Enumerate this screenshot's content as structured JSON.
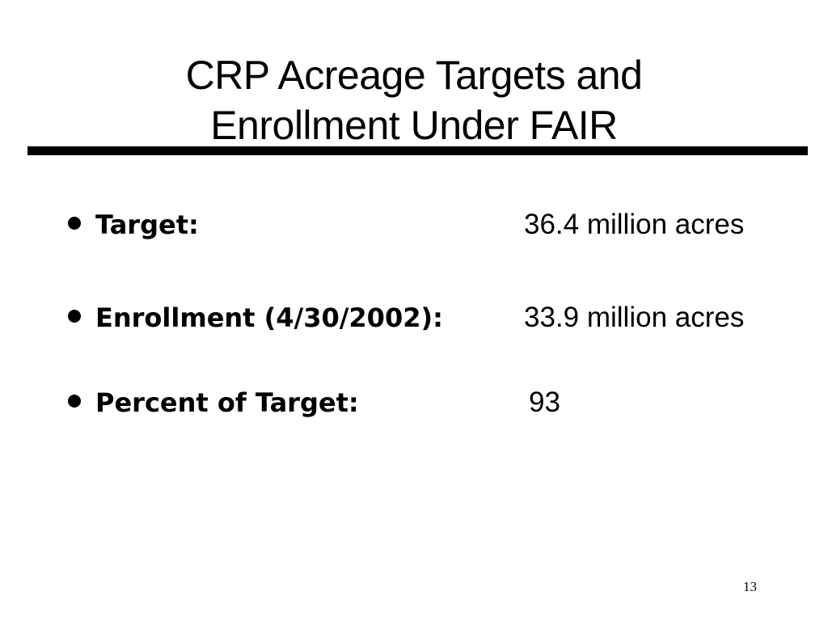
{
  "slide": {
    "title_line_1": "CRP Acreage Targets and",
    "title_line_2": "Enrollment Under FAIR",
    "bullets": [
      {
        "label": "Target:",
        "value": "36.4 million acres"
      },
      {
        "label": "Enrollment (4/30/2002):",
        "value": "33.9 million acres"
      },
      {
        "label": "Percent of Target:",
        "value": "93"
      }
    ],
    "page_number": "13"
  }
}
